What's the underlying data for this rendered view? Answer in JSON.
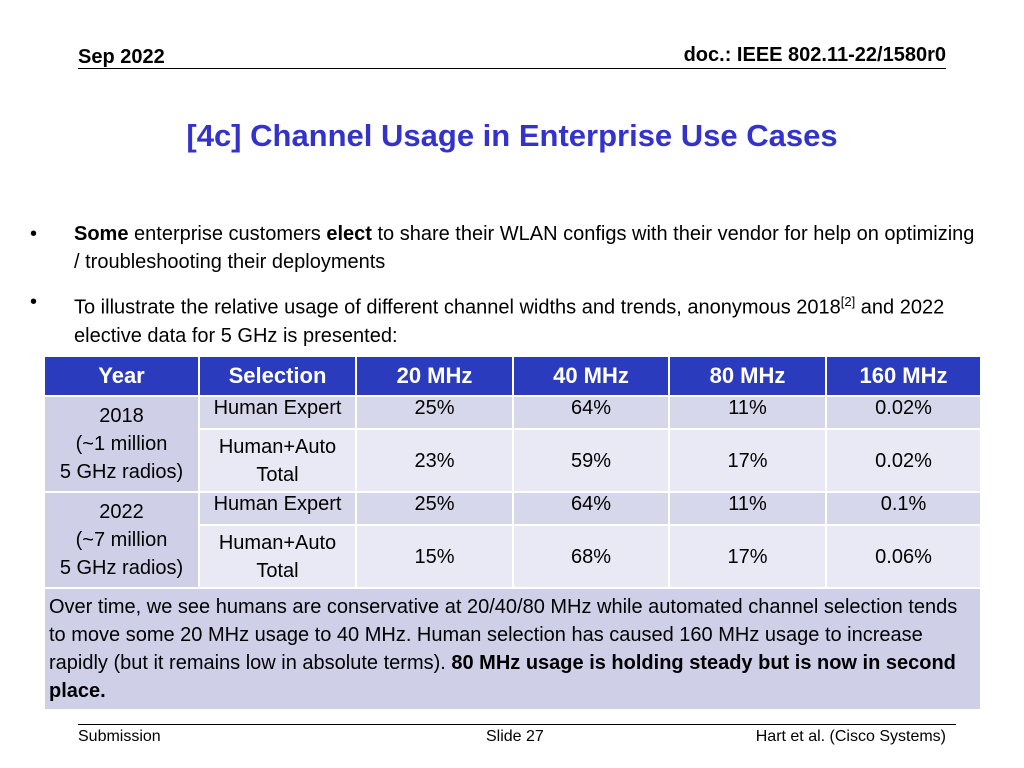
{
  "header": {
    "date": "Sep 2022",
    "doc": "doc.: IEEE 802.11-22/1580r0"
  },
  "title": "[4c] Channel Usage in Enterprise Use Cases",
  "bullets": [
    {
      "b1": "Some",
      "t1": " enterprise customers ",
      "b2": "elect",
      "t2": " to share their WLAN configs with their vendor for help on optimizing / troubleshooting their deployments"
    },
    {
      "t1": "To illustrate the relative usage of different channel widths and trends, anonymous 2018",
      "sup": "[2]",
      "t2": " and 2022 elective data for 5 GHz is presented:"
    }
  ],
  "bullet_symbol": "•",
  "table": {
    "headers": [
      "Year",
      "Selection",
      "20 MHz",
      "40 MHz",
      "80 MHz",
      "160 MHz"
    ],
    "groups": [
      {
        "year": [
          "2018",
          "(~1 million",
          "5 GHz radios)"
        ],
        "rows": [
          {
            "selection": "Human Expert",
            "values": [
              "25%",
              "64%",
              "11%",
              "0.02%"
            ]
          },
          {
            "selection": [
              "Human+Auto",
              "Total"
            ],
            "values": [
              "23%",
              "59%",
              "17%",
              "0.02%"
            ]
          }
        ]
      },
      {
        "year": [
          "2022",
          "(~7 million",
          "5 GHz radios)"
        ],
        "rows": [
          {
            "selection": "Human Expert",
            "values": [
              "25%",
              "64%",
              "11%",
              "0.1%"
            ]
          },
          {
            "selection": [
              "Human+Auto",
              "Total"
            ],
            "values": [
              "15%",
              "68%",
              "17%",
              "0.06%"
            ]
          }
        ]
      }
    ],
    "note": {
      "text": "Over time, we see humans are conservative at 20/40/80 MHz while automated channel selection tends to move some 20 MHz usage to 40 MHz. Human selection has caused 160 MHz usage to increase rapidly (but it remains low in absolute terms). ",
      "bold": "80 MHz usage is holding steady but is now in second place."
    }
  },
  "footer": {
    "left": "Submission",
    "center": "Slide 27",
    "right": "Hart et al. (Cisco Systems)"
  },
  "colors": {
    "title": "#3333cc",
    "header_bg": "#2b3bbd",
    "cell_dark": "#cfd0e8",
    "cell_light": "#e8e9f4"
  }
}
